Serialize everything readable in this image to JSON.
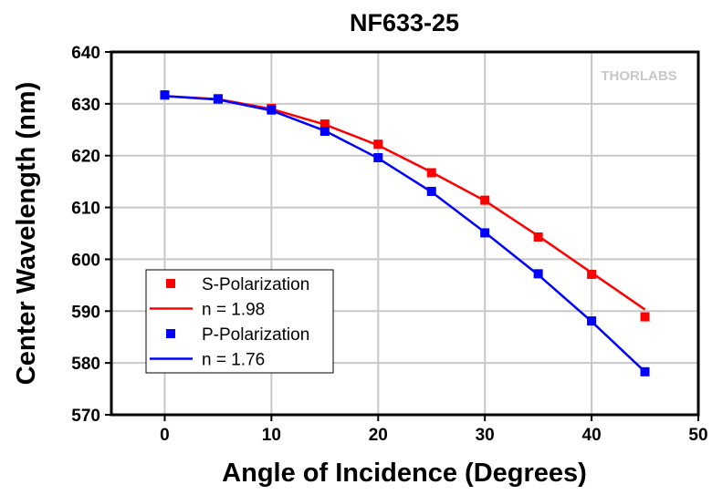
{
  "chart_data": {
    "type": "scatter",
    "title": "NF633-25",
    "xlabel": "Angle of Incidence (Degrees)",
    "ylabel": "Center Wavelength (nm)",
    "xlim": [
      -5,
      50
    ],
    "ylim": [
      570,
      640
    ],
    "xticks": [
      0,
      10,
      20,
      30,
      40,
      50
    ],
    "yticks": [
      570,
      580,
      590,
      600,
      610,
      620,
      630,
      640
    ],
    "grid": true,
    "legend_position": "bottom-left",
    "watermark": "THORLABS",
    "x": [
      0,
      5,
      10,
      15,
      20,
      25,
      30,
      35,
      40,
      45
    ],
    "series": [
      {
        "name": "S-Polarization",
        "kind": "markers",
        "color": "#ff0000",
        "values": [
          631.7,
          631.0,
          629.1,
          626.1,
          622.2,
          616.7,
          611.4,
          604.3,
          597.1,
          588.9
        ]
      },
      {
        "name": "n = 1.98",
        "kind": "line",
        "color": "#ff0000",
        "values": [
          631.5,
          630.9,
          629.0,
          626.0,
          622.0,
          616.8,
          611.3,
          604.5,
          597.4,
          590.3
        ]
      },
      {
        "name": "P-Polarization",
        "kind": "markers",
        "color": "#0000ff",
        "values": [
          631.7,
          630.9,
          628.8,
          624.7,
          619.6,
          613.1,
          605.1,
          597.2,
          588.1,
          578.3
        ]
      },
      {
        "name": "n = 1.76",
        "kind": "line",
        "color": "#0000ff",
        "values": [
          631.5,
          630.8,
          628.7,
          624.8,
          619.5,
          613.0,
          605.2,
          597.0,
          588.0,
          578.3
        ]
      }
    ]
  }
}
